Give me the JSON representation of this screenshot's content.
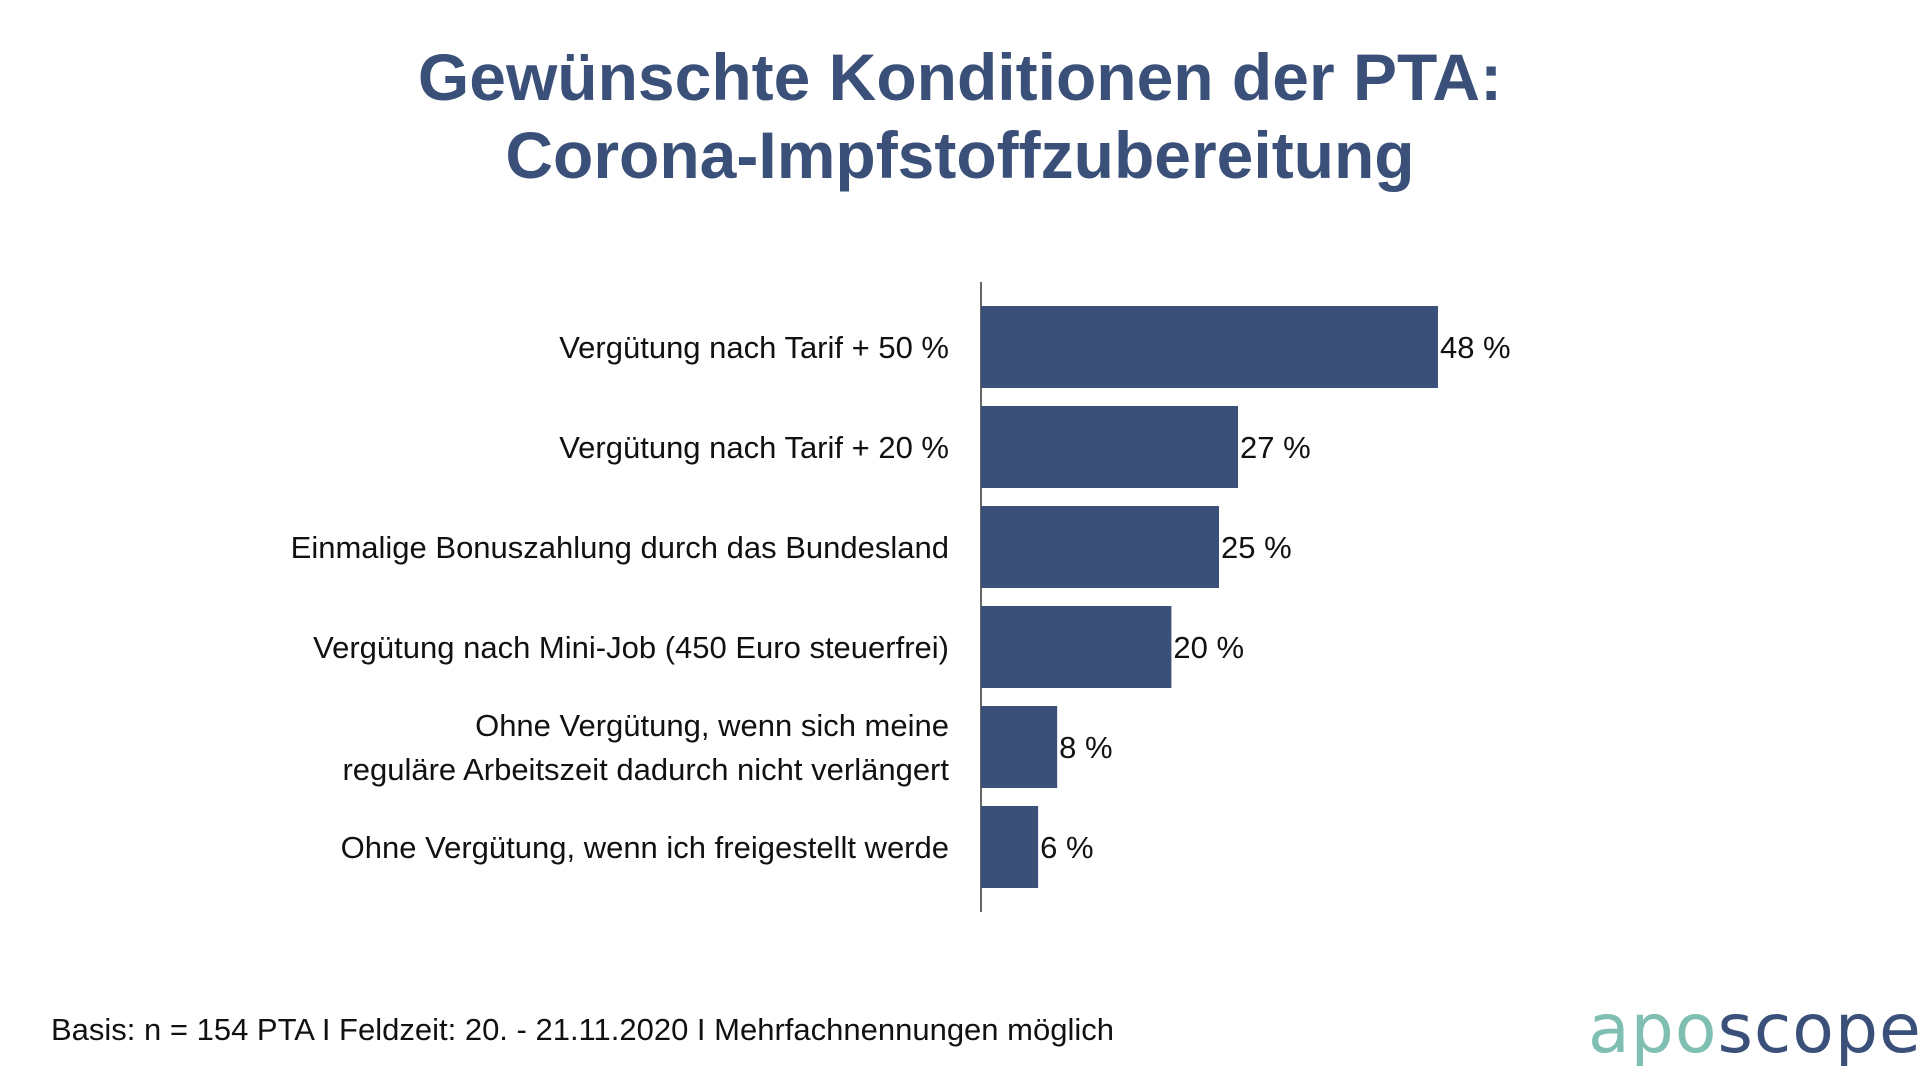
{
  "title_line1": "Gewünschte Konditionen der PTA:",
  "title_line2": "Corona-Impfstoffzubereitung",
  "footnote": "Basis: n = 154 PTA I Feldzeit: 20. - 21.11.2020 I Mehrfachnennungen möglich",
  "logo": {
    "part1": "apo",
    "part2": "scope"
  },
  "colors": {
    "bar": "#3a5079",
    "title": "#3a5079",
    "logo_part1": "#7fbfb2",
    "logo_part2": "#3a5079",
    "axis": "#333333"
  },
  "chart_data": {
    "type": "bar",
    "orientation": "horizontal",
    "title": "Gewünschte Konditionen der PTA: Corona-Impfstoffzubereitung",
    "categories": [
      [
        "Vergütung nach Tarif + 50 %"
      ],
      [
        "Vergütung nach Tarif + 20 %"
      ],
      [
        "Einmalige Bonuszahlung durch das Bundesland"
      ],
      [
        "Vergütung nach Mini-Job (450 Euro steuerfrei)"
      ],
      [
        "Ohne Vergütung, wenn sich meine",
        "reguläre Arbeitszeit dadurch nicht verlängert"
      ],
      [
        "Ohne Vergütung, wenn ich freigestellt werde"
      ]
    ],
    "values": [
      48,
      27,
      25,
      20,
      8,
      6
    ],
    "value_labels": [
      "48 %",
      "27 %",
      "25 %",
      "20 %",
      "8 %",
      "6 %"
    ],
    "unit": "%",
    "xlim": [
      0,
      100
    ],
    "grid": false,
    "legend": "none"
  }
}
